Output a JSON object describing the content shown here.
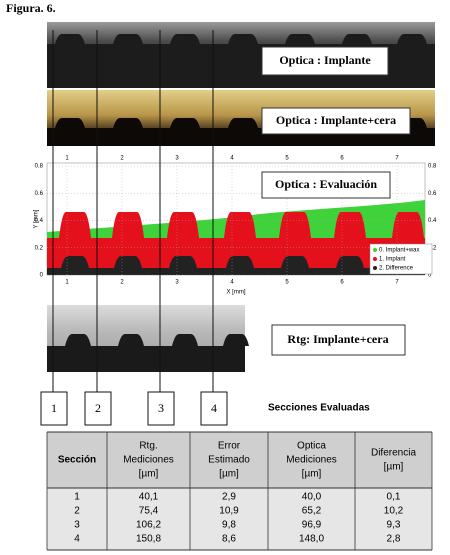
{
  "figure_label": "Figura. 6.",
  "panels": {
    "optica_implante": "Optica : Implante",
    "optica_implante_cera": "Optica : Implante+cera",
    "optica_evaluacion": "Optica : Evaluación",
    "rtg_implante_cera": "Rtg: Implante+cera"
  },
  "chart": {
    "x_label": "X [mm]",
    "y_label": "Y [mm]",
    "xlim": [
      0.64,
      7.5
    ],
    "ylim": [
      0,
      0.8
    ],
    "xticks": [
      1,
      2,
      3,
      4,
      5,
      6,
      7
    ],
    "yticks": [
      0,
      0.2,
      0.4,
      0.6,
      0.8
    ],
    "legend": [
      {
        "name": "0. Implant+wax",
        "color": "#3fd23a"
      },
      {
        "name": "1. Implant",
        "color": "#e4101c"
      },
      {
        "name": "2. Difference",
        "color": "#222222"
      }
    ]
  },
  "sections": {
    "labels": [
      "1",
      "2",
      "3",
      "4"
    ],
    "caption": "Secciones Evaluadas"
  },
  "table": {
    "header": [
      [
        "Sección"
      ],
      [
        "Rtg.",
        "Mediciones",
        "[µm]"
      ],
      [
        "Error",
        "Estimado",
        "[µm]"
      ],
      [
        "Optica",
        "Mediciones",
        "[µm]"
      ],
      [
        "Diferencia",
        "[µm]"
      ]
    ],
    "rows": [
      [
        "1",
        "40,1",
        "2,9",
        "40,0",
        "0,1"
      ],
      [
        "2",
        "75,4",
        "10,9",
        "65,2",
        "10,2"
      ],
      [
        "3",
        "106,2",
        "9,8",
        "96,9",
        "9,3"
      ],
      [
        "4",
        "150,8",
        "8,6",
        "148,0",
        "2,8"
      ]
    ]
  }
}
